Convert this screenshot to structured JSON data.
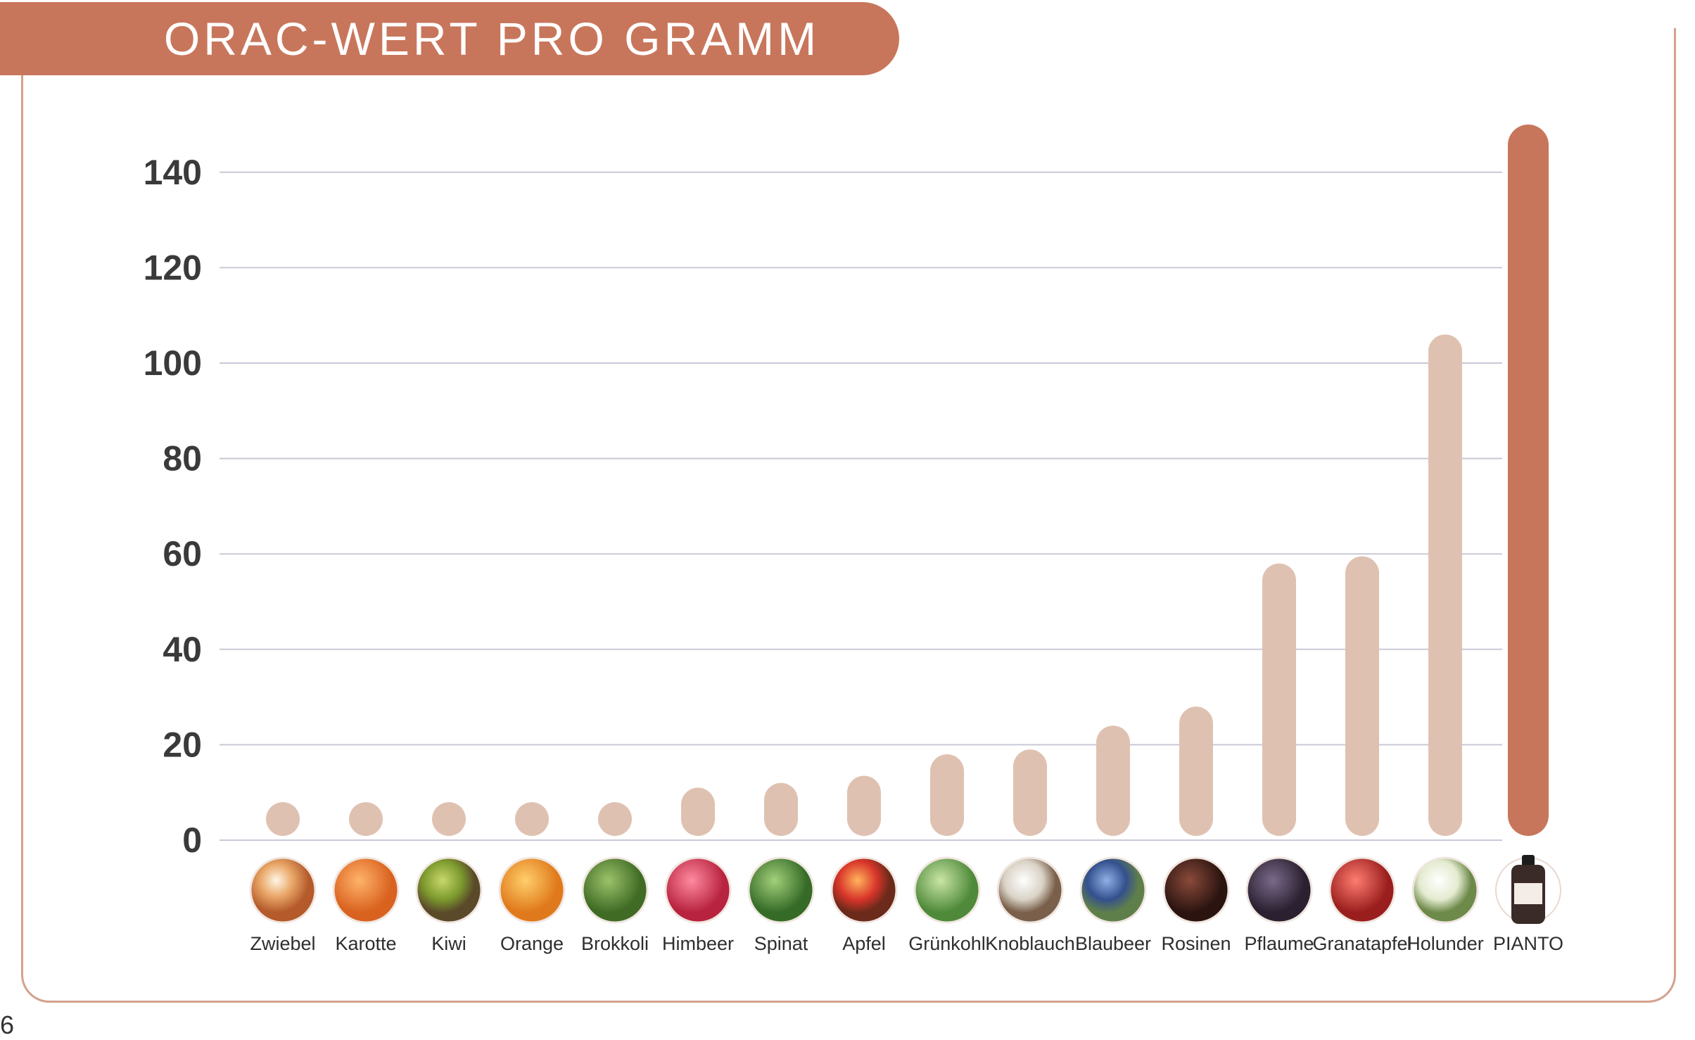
{
  "page_number": "6",
  "colors": {
    "accent": "#c8765b",
    "bar_light": "#dfc1b2",
    "bar_highlight": "#c8765b",
    "grid": "#c9c9d8"
  },
  "chart_data": {
    "type": "bar",
    "title": "ORAC-WERT PRO GRAMM",
    "xlabel": "",
    "ylabel": "",
    "ylim": [
      0,
      150
    ],
    "yticks": [
      "140",
      "120",
      "100",
      "80",
      "60",
      "40",
      "20",
      "0"
    ],
    "grid": true,
    "legend": "none",
    "categories": [
      "Zwiebel",
      "Karotte",
      "Kiwi",
      "Orange",
      "Brokkoli",
      "Himbeer",
      "Spinat",
      "Apfel",
      "Grünkohl",
      "Knoblauch",
      "Blaubeer",
      "Rosinen",
      "Pflaume",
      "Granatapfel",
      "Holunder",
      "PIANTO"
    ],
    "icons": [
      "onion-icon",
      "carrot-icon",
      "kiwi-icon",
      "orange-icon",
      "broccoli-icon",
      "raspberry-icon",
      "spinach-icon",
      "apple-icon",
      "kale-icon",
      "garlic-icon",
      "blueberry-icon",
      "raisin-icon",
      "plum-icon",
      "pomegranate-icon",
      "elderflower-icon",
      "bottle-icon"
    ],
    "values": [
      3,
      3.5,
      4.5,
      6,
      7.5,
      11,
      12,
      13.5,
      18,
      19,
      24,
      28,
      58,
      59.5,
      106,
      150
    ],
    "highlight": "PIANTO"
  }
}
